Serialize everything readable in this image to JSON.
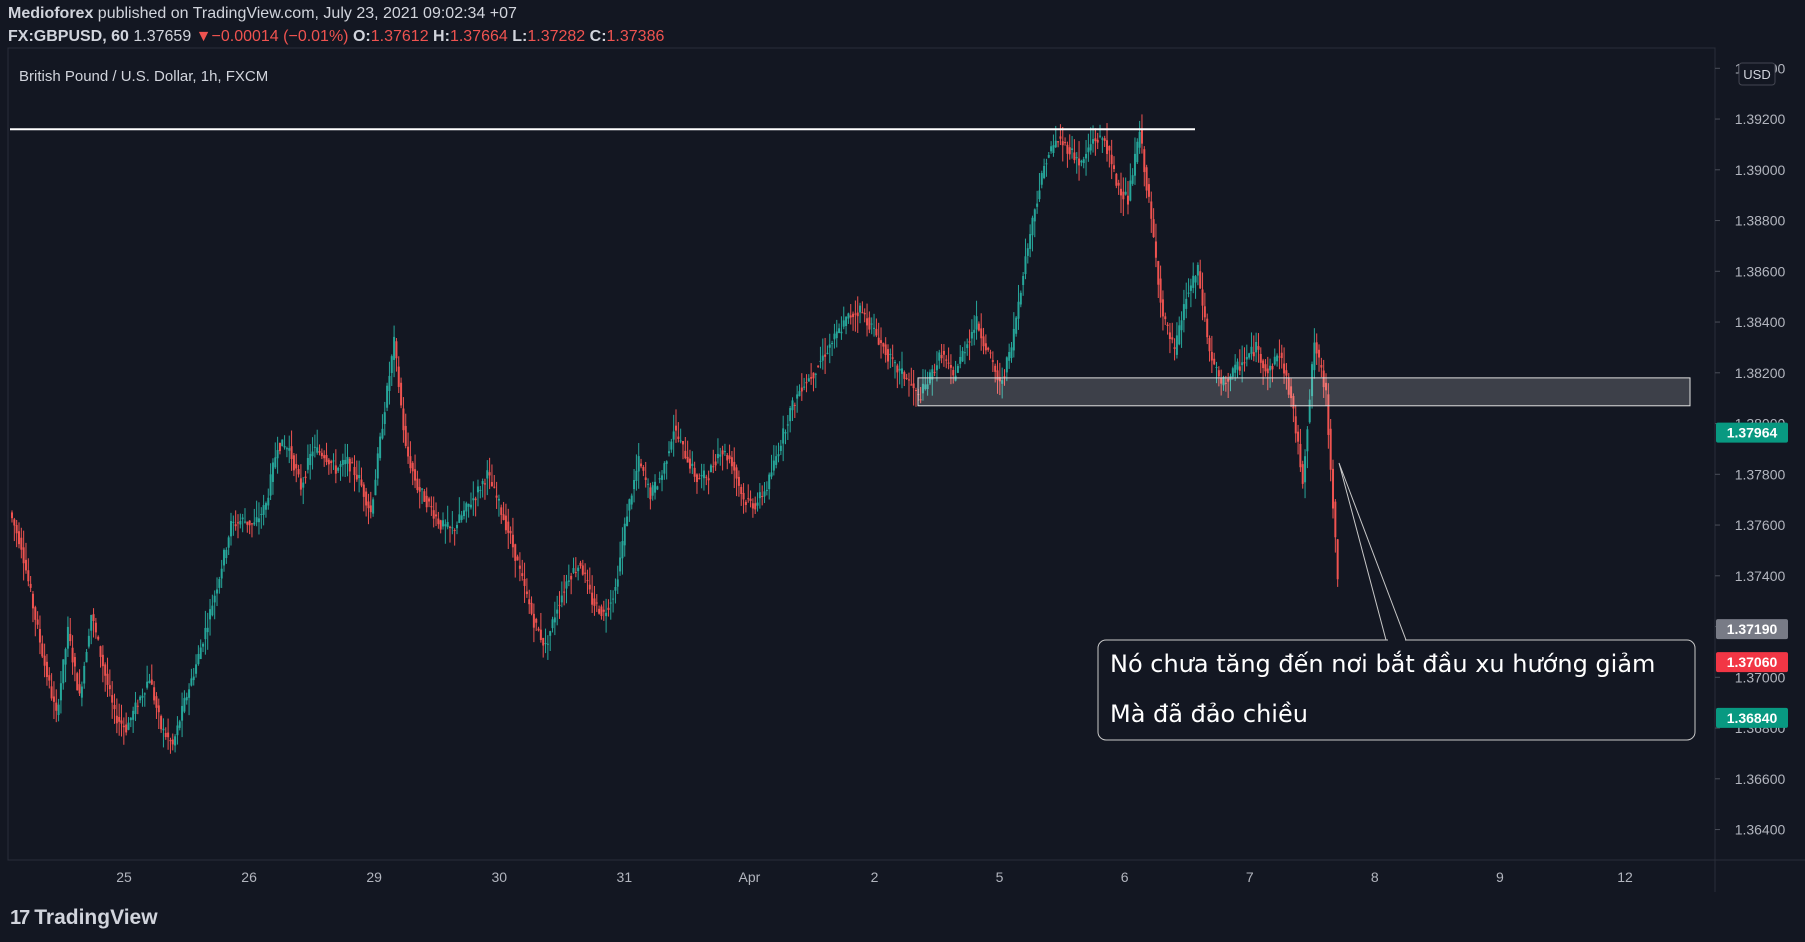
{
  "header": {
    "author": "Medioforex",
    "published_text": "published on TradingView.com, July 23, 2021 09:02:34 +07",
    "symbol": "FX:GBPUSD, 60",
    "last": "1.37659",
    "change_arrow": "▼",
    "change": "−0.00014 (−0.01%)",
    "open_label": "O:",
    "open": "1.37612",
    "high_label": "H:",
    "high": "1.37664",
    "low_label": "L:",
    "low": "1.37282",
    "close_label": "C:",
    "close": "1.37386"
  },
  "branding": {
    "logo_text": "TradingView",
    "logo_mark": "17"
  },
  "chart_data": {
    "type": "candlestick",
    "title": "British Pound / U.S. Dollar, 1h, FXCM",
    "currency_label": "USD",
    "ylim": [
      1.3628,
      1.3948
    ],
    "y_ticks": [
      "1.39400",
      "1.39200",
      "1.39000",
      "1.38800",
      "1.38600",
      "1.38400",
      "1.38200",
      "1.38000",
      "1.37800",
      "1.37600",
      "1.37400",
      "1.37200",
      "1.37000",
      "1.36800",
      "1.36600",
      "1.36400"
    ],
    "x_ticks": [
      "25",
      "26",
      "29",
      "30",
      "31",
      "Apr",
      "2",
      "5",
      "6",
      "7",
      "8",
      "9",
      "12"
    ],
    "price_labels": [
      {
        "value": 1.37964,
        "text": "1.37964",
        "color": "#089981"
      },
      {
        "value": 1.3719,
        "text": "1.37190",
        "color": "#787b86"
      },
      {
        "value": 1.3706,
        "text": "1.37060",
        "color": "#f23645"
      },
      {
        "value": 1.3684,
        "text": "1.36840",
        "color": "#089981"
      }
    ],
    "resistance_level": 1.3916,
    "support_zone": [
      1.3807,
      1.3818
    ],
    "annotation": {
      "lines": [
        "Nó chưa tăng đến nơi bắt đầu xu hướng giảm",
        "Mà đã đảo chiều"
      ]
    },
    "colors": {
      "up": "#26a69a",
      "down": "#ef5350"
    },
    "path": [
      1.3765,
      1.3752,
      1.3728,
      1.3705,
      1.3685,
      1.3718,
      1.3692,
      1.3725,
      1.3705,
      1.3685,
      1.368,
      1.369,
      1.37,
      1.368,
      1.3673,
      1.369,
      1.3705,
      1.3722,
      1.374,
      1.376,
      1.3762,
      1.376,
      1.3768,
      1.3792,
      1.379,
      1.3775,
      1.379,
      1.3788,
      1.3782,
      1.3785,
      1.3778,
      1.3765,
      1.38,
      1.3832,
      1.379,
      1.3775,
      1.3768,
      1.376,
      1.3758,
      1.3765,
      1.3772,
      1.378,
      1.3768,
      1.3755,
      1.3738,
      1.3722,
      1.3712,
      1.3728,
      1.374,
      1.3745,
      1.373,
      1.3725,
      1.3735,
      1.3765,
      1.3785,
      1.3772,
      1.378,
      1.3798,
      1.3788,
      1.3778,
      1.378,
      1.379,
      1.3785,
      1.377,
      1.3768,
      1.3775,
      1.379,
      1.3805,
      1.3815,
      1.382,
      1.3828,
      1.3835,
      1.3842,
      1.3845,
      1.3838,
      1.383,
      1.3822,
      1.3818,
      1.381,
      1.3818,
      1.3828,
      1.3818,
      1.383,
      1.384,
      1.3828,
      1.3815,
      1.383,
      1.386,
      1.3885,
      1.3905,
      1.3912,
      1.3908,
      1.3902,
      1.3912,
      1.3912,
      1.3895,
      1.3888,
      1.3915,
      1.388,
      1.3842,
      1.3828,
      1.385,
      1.386,
      1.3828,
      1.3815,
      1.382,
      1.3825,
      1.383,
      1.382,
      1.3828,
      1.381,
      1.3778,
      1.3832,
      1.3812,
      1.374
    ]
  }
}
